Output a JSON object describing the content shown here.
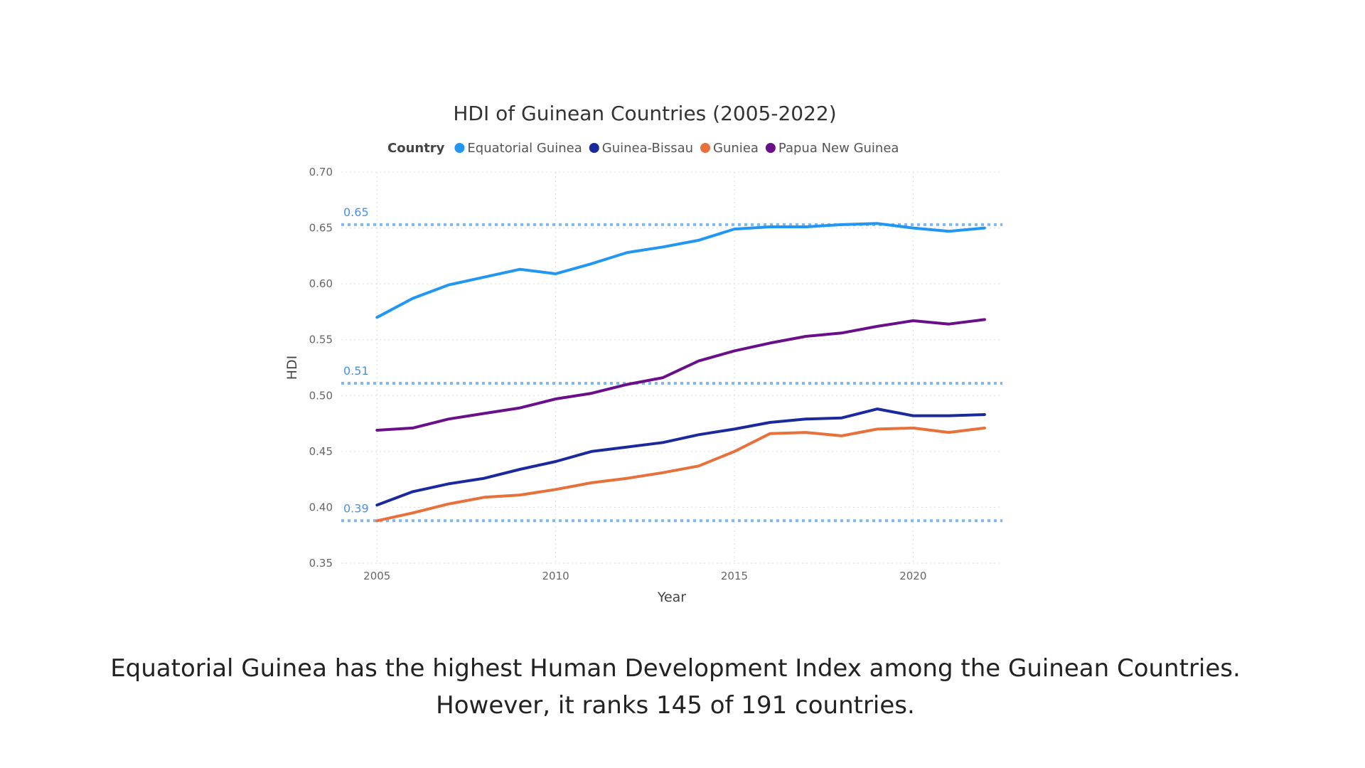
{
  "caption": {
    "line1": "Equatorial Guinea has the highest Human Development Index among the Guinean Countries.",
    "line2": "However, it ranks 145 of 191 countries."
  },
  "chart_data": {
    "type": "line",
    "title": "HDI of Guinean Countries (2005-2022)",
    "xlabel": "Year",
    "ylabel": "HDI",
    "legend_title": "Country",
    "legend_position": "top",
    "grid": true,
    "xlim": [
      2004,
      2022.5
    ],
    "ylim": [
      0.35,
      0.7
    ],
    "x_ticks": [
      2005,
      2010,
      2015,
      2020
    ],
    "y_ticks": [
      0.35,
      0.4,
      0.45,
      0.5,
      0.55,
      0.6,
      0.65,
      0.7
    ],
    "y_tick_labels": [
      "0.35",
      "0.40",
      "0.45",
      "0.50",
      "0.55",
      "0.60",
      "0.65",
      "0.70"
    ],
    "x": [
      2005,
      2006,
      2007,
      2008,
      2009,
      2010,
      2011,
      2012,
      2013,
      2014,
      2015,
      2016,
      2017,
      2018,
      2019,
      2020,
      2021,
      2022
    ],
    "series": [
      {
        "name": "Equatorial Guinea",
        "color": "#2196f3",
        "values": [
          0.57,
          0.587,
          0.599,
          0.606,
          0.613,
          0.609,
          0.618,
          0.628,
          0.633,
          0.639,
          0.649,
          0.651,
          0.651,
          0.653,
          0.654,
          0.65,
          0.647,
          0.65
        ]
      },
      {
        "name": "Guinea-Bissau",
        "color": "#1a2a9e",
        "values": [
          0.402,
          0.414,
          0.421,
          0.426,
          0.434,
          0.441,
          0.45,
          0.454,
          0.458,
          0.465,
          0.47,
          0.476,
          0.479,
          0.48,
          0.488,
          0.482,
          0.482,
          0.483
        ]
      },
      {
        "name": "Guniea",
        "color": "#e8703a",
        "values": [
          0.388,
          0.395,
          0.403,
          0.409,
          0.411,
          0.416,
          0.422,
          0.426,
          0.431,
          0.437,
          0.45,
          0.466,
          0.467,
          0.464,
          0.47,
          0.471,
          0.467,
          0.471
        ]
      },
      {
        "name": "Papua New Guinea",
        "color": "#6a0f8a",
        "values": [
          0.469,
          0.471,
          0.479,
          0.484,
          0.489,
          0.497,
          0.502,
          0.51,
          0.516,
          0.531,
          0.54,
          0.547,
          0.553,
          0.556,
          0.562,
          0.567,
          0.564,
          0.568
        ]
      }
    ],
    "reference_lines": [
      {
        "value": 0.653,
        "label": "0.65",
        "color": "#7db8f5"
      },
      {
        "value": 0.511,
        "label": "0.51",
        "color": "#7db8f5"
      },
      {
        "value": 0.388,
        "label": "0.39",
        "color": "#7db8f5"
      }
    ]
  }
}
